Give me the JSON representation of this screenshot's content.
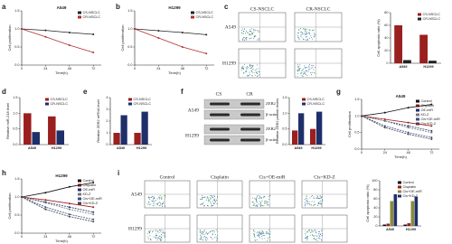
{
  "chart_data": [
    {
      "type": "line",
      "title": "A549",
      "x": [
        0,
        24,
        48,
        72
      ],
      "xlim": [
        0,
        80
      ],
      "xticks": [
        0,
        24,
        48,
        72
      ],
      "ylim": [
        0,
        1.5
      ],
      "yticks": [
        {
          "value": 0,
          "label": "0.0"
        },
        {
          "value": 0.5,
          "label": "0.5"
        },
        {
          "value": 1,
          "label": "1.0"
        },
        {
          "value": 1.5,
          "label": "1.5"
        }
      ],
      "x_label": "Time(h)",
      "y_label": "Cell proliferation",
      "legend": "upper right",
      "series": [
        {
          "name": "CS-NSCLC",
          "color": "#222222",
          "values": [
            1,
            0.96,
            0.9,
            0.85
          ]
        },
        {
          "name": "CR-NSCLC",
          "color": "#b03030",
          "values": [
            1,
            0.78,
            0.55,
            0.35
          ]
        }
      ]
    },
    {
      "type": "line",
      "title": "H1299",
      "x": [
        0,
        24,
        48,
        72
      ],
      "xlim": [
        0,
        80
      ],
      "xticks": [
        0,
        24,
        48,
        72
      ],
      "ylim": [
        0,
        1.5
      ],
      "yticks": [
        {
          "value": 0,
          "label": "0.0"
        },
        {
          "value": 0.5,
          "label": "0.5"
        },
        {
          "value": 1,
          "label": "1.0"
        },
        {
          "value": 1.5,
          "label": "1.5"
        }
      ],
      "x_label": "Time(h)",
      "y_label": "Cell proliferation",
      "legend": "upper right",
      "series": [
        {
          "name": "CS-NSCLC",
          "color": "#222222",
          "values": [
            1,
            0.95,
            0.9,
            0.84
          ]
        },
        {
          "name": "CR-NSCLC",
          "color": "#b03030",
          "values": [
            1,
            0.75,
            0.5,
            0.32
          ]
        }
      ]
    },
    {
      "type": "bar",
      "categories": [
        "A549",
        "H1299"
      ],
      "ylim": [
        0,
        80
      ],
      "yticks": [
        0,
        20,
        40,
        60,
        80
      ],
      "y_label": "Cell apoptosis ratio (%)",
      "legend": "upper right",
      "series": [
        {
          "name": "CS-NSCLC",
          "color": "#9a1f1f",
          "values": [
            60,
            45
          ]
        },
        {
          "name": "CR-NSCLC",
          "color": "#222222",
          "values": [
            5,
            4
          ]
        }
      ]
    },
    {
      "type": "bar",
      "categories": [
        "A549",
        "H1299"
      ],
      "ylim": [
        0,
        1.5
      ],
      "yticks": [
        {
          "value": 0,
          "label": "0.0"
        },
        {
          "value": 0.5,
          "label": "0.5"
        },
        {
          "value": 1,
          "label": "1.0"
        },
        {
          "value": 1.5,
          "label": "1.5"
        }
      ],
      "y_label": "Relative miR-218 level",
      "legend": "upper right",
      "series": [
        {
          "name": "CS-NSCLC",
          "color": "#9a1f1f",
          "values": [
            1,
            0.9
          ]
        },
        {
          "name": "CR-NSCLC",
          "color": "#1f2f6a",
          "values": [
            0.4,
            0.45
          ]
        }
      ]
    },
    {
      "type": "bar",
      "categories": [
        "A549",
        "H1299"
      ],
      "ylim": [
        0,
        4
      ],
      "yticks": [
        0,
        1,
        2,
        3,
        4
      ],
      "y_label": "Relative ZEB2 mRNA level",
      "legend": "upper right",
      "series": [
        {
          "name": "CS-NSCLC",
          "color": "#9a1f1f",
          "values": [
            1,
            1
          ]
        },
        {
          "name": "CR-NSCLC",
          "color": "#1f2f6a",
          "values": [
            2.5,
            2.8
          ]
        }
      ]
    },
    {
      "type": "bar",
      "categories": [
        "A549",
        "H1299"
      ],
      "ylim": [
        0,
        1.5
      ],
      "yticks": [
        {
          "value": 0,
          "label": "0.0"
        },
        {
          "value": 0.5,
          "label": "0.5"
        },
        {
          "value": 1,
          "label": "1.0"
        },
        {
          "value": 1.5,
          "label": "1.5"
        }
      ],
      "y_label": "Relative ZEB2 protein levels",
      "legend": "upper right",
      "series": [
        {
          "name": "CS-NSCLC",
          "color": "#9a1f1f",
          "values": [
            0.45,
            0.5
          ]
        },
        {
          "name": "CR-NSCLC",
          "color": "#1f2f6a",
          "values": [
            1,
            1.05
          ]
        }
      ]
    },
    {
      "type": "line",
      "title": "A549",
      "x": [
        0,
        24,
        48,
        72
      ],
      "xlim": [
        0,
        80
      ],
      "xticks": [
        0,
        24,
        48,
        72
      ],
      "ylim": [
        0,
        1.5
      ],
      "yticks": [
        {
          "value": 0,
          "label": "0.0"
        },
        {
          "value": 0.5,
          "label": "0.5"
        },
        {
          "value": 1,
          "label": "1.0"
        },
        {
          "value": 1.5,
          "label": "1.5"
        }
      ],
      "x_label": "Time(h)",
      "y_label": "Cell proliferation",
      "legend": "upper right",
      "series": [
        {
          "name": "Control",
          "color": "#111111",
          "values": [
            1,
            1.1,
            1.25,
            1.35
          ]
        },
        {
          "name": "Cisplatin",
          "color": "#9a1f1f",
          "values": [
            1,
            0.9,
            0.8,
            0.7
          ]
        },
        {
          "name": "OE-miR",
          "color": "#1f2f6a",
          "values": [
            1,
            0.85,
            0.7,
            0.55
          ]
        },
        {
          "name": "KD-Z",
          "color": "#777777",
          "values": [
            1,
            0.85,
            0.65,
            0.5
          ]
        },
        {
          "name": "Cis+OE-miR",
          "color": "#3a4a8a",
          "values": [
            1,
            0.7,
            0.5,
            0.35
          ]
        },
        {
          "name": "Cis+KD-Z",
          "color": "#444444",
          "values": [
            1,
            0.65,
            0.45,
            0.3
          ]
        }
      ]
    },
    {
      "type": "line",
      "title": "H1299",
      "x": [
        0,
        24,
        48,
        72
      ],
      "xlim": [
        0,
        80
      ],
      "xticks": [
        0,
        24,
        48,
        72
      ],
      "ylim": [
        0,
        1.5
      ],
      "yticks": [
        {
          "value": 0,
          "label": "0.0"
        },
        {
          "value": 0.5,
          "label": "0.5"
        },
        {
          "value": 1,
          "label": "1.0"
        },
        {
          "value": 1.5,
          "label": "1.5"
        }
      ],
      "x_label": "Time(h)",
      "y_label": "Cell proliferation",
      "legend": "upper right",
      "series": [
        {
          "name": "Control",
          "color": "#111111",
          "values": [
            1,
            1.12,
            1.28,
            1.4
          ]
        },
        {
          "name": "Cisplatin",
          "color": "#9a1f1f",
          "values": [
            1,
            0.92,
            0.82,
            0.72
          ]
        },
        {
          "name": "OE-miR",
          "color": "#1f2f6a",
          "values": [
            1,
            0.86,
            0.72,
            0.58
          ]
        },
        {
          "name": "KD-Z",
          "color": "#777777",
          "values": [
            1,
            0.84,
            0.66,
            0.52
          ]
        },
        {
          "name": "Cis+OE-miR",
          "color": "#3a4a8a",
          "values": [
            1,
            0.72,
            0.52,
            0.38
          ]
        },
        {
          "name": "Cis+KD-Z",
          "color": "#444444",
          "values": [
            1,
            0.66,
            0.46,
            0.32
          ]
        }
      ]
    },
    {
      "type": "bar",
      "categories": [
        "A549",
        "H1299"
      ],
      "ylim": [
        0,
        100
      ],
      "yticks": [
        0,
        20,
        40,
        60,
        80,
        100
      ],
      "y_label": "Cell apoptosis ratio (%)",
      "legend": "upper right",
      "series": [
        {
          "name": "Control",
          "color": "#111111",
          "values": [
            3,
            3
          ]
        },
        {
          "name": "Cisplatin",
          "color": "#9a1f1f",
          "values": [
            5,
            6
          ]
        },
        {
          "name": "Cis+OE-miR",
          "color": "#8a8a3a",
          "values": [
            55,
            55
          ]
        },
        {
          "name": "Cis+KD-Z",
          "color": "#1f2f6a",
          "values": [
            70,
            65
          ]
        }
      ]
    }
  ],
  "figure": {
    "panel_labels": [
      "a",
      "b",
      "c",
      "d",
      "e",
      "f",
      "g",
      "h",
      "i"
    ],
    "c_flow": {
      "columns": [
        "CS-NSCLC",
        "CR-NSCLC"
      ],
      "rows": [
        "A549",
        "H1299"
      ]
    },
    "f_blot": {
      "columns": [
        "CS",
        "CR"
      ],
      "bands": [
        "ZEB2",
        "β-actin"
      ],
      "rows": [
        "A549",
        "H1299"
      ]
    },
    "i_flow": {
      "columns": [
        "Control",
        "Cisplatin",
        "Cis+OE-miR",
        "Cis+KD-Z"
      ],
      "rows": [
        "A549",
        "H1299"
      ]
    }
  }
}
